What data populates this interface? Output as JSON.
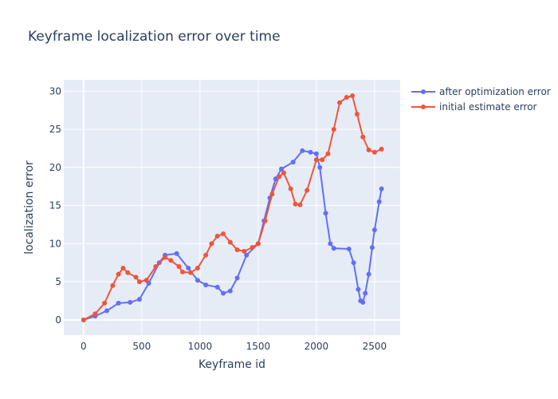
{
  "chart_data": {
    "type": "line",
    "title": "Keyframe localization error over time",
    "xlabel": "Keyframe id",
    "ylabel": "localization error",
    "xlim": [
      -170,
      2720
    ],
    "ylim": [
      -2,
      31.5
    ],
    "xticks": [
      0,
      500,
      1000,
      1500,
      2000,
      2500
    ],
    "yticks": [
      0,
      5,
      10,
      15,
      20,
      25,
      30
    ],
    "grid": true,
    "legend_position": "top-right",
    "plot_background": "#e5ecf6",
    "series": [
      {
        "name": "after optimization error",
        "color": "#636efa",
        "points": [
          [
            0,
            0
          ],
          [
            100,
            0.5
          ],
          [
            200,
            1.2
          ],
          [
            300,
            2.2
          ],
          [
            400,
            2.3
          ],
          [
            480,
            2.7
          ],
          [
            560,
            4.8
          ],
          [
            650,
            7.5
          ],
          [
            700,
            8.5
          ],
          [
            800,
            8.7
          ],
          [
            900,
            6.8
          ],
          [
            980,
            5.2
          ],
          [
            1050,
            4.6
          ],
          [
            1150,
            4.3
          ],
          [
            1200,
            3.5
          ],
          [
            1260,
            3.8
          ],
          [
            1320,
            5.5
          ],
          [
            1400,
            8.5
          ],
          [
            1500,
            10
          ],
          [
            1550,
            13
          ],
          [
            1600,
            16
          ],
          [
            1650,
            18.5
          ],
          [
            1700,
            19.8
          ],
          [
            1800,
            20.7
          ],
          [
            1880,
            22.2
          ],
          [
            1950,
            22
          ],
          [
            2000,
            21.8
          ],
          [
            2030,
            20
          ],
          [
            2080,
            14
          ],
          [
            2120,
            10
          ],
          [
            2150,
            9.4
          ],
          [
            2280,
            9.3
          ],
          [
            2320,
            7.5
          ],
          [
            2360,
            4
          ],
          [
            2380,
            2.5
          ],
          [
            2400,
            2.3
          ],
          [
            2420,
            3.5
          ],
          [
            2450,
            6
          ],
          [
            2480,
            9.5
          ],
          [
            2500,
            11.8
          ],
          [
            2540,
            15.5
          ],
          [
            2560,
            17.2
          ]
        ]
      },
      {
        "name": "initial estimate error",
        "color": "#ef553b",
        "points": [
          [
            0,
            0
          ],
          [
            100,
            0.8
          ],
          [
            180,
            2.2
          ],
          [
            250,
            4.5
          ],
          [
            300,
            6
          ],
          [
            340,
            6.8
          ],
          [
            380,
            6.2
          ],
          [
            450,
            5.6
          ],
          [
            480,
            5
          ],
          [
            540,
            5.2
          ],
          [
            620,
            7
          ],
          [
            700,
            8.2
          ],
          [
            750,
            7.8
          ],
          [
            820,
            7
          ],
          [
            850,
            6.3
          ],
          [
            920,
            6.2
          ],
          [
            980,
            6.8
          ],
          [
            1050,
            8.5
          ],
          [
            1100,
            10
          ],
          [
            1150,
            11
          ],
          [
            1200,
            11.3
          ],
          [
            1260,
            10.2
          ],
          [
            1320,
            9.2
          ],
          [
            1380,
            9
          ],
          [
            1450,
            9.5
          ],
          [
            1500,
            10
          ],
          [
            1560,
            13
          ],
          [
            1620,
            16.5
          ],
          [
            1680,
            18.8
          ],
          [
            1720,
            19.3
          ],
          [
            1780,
            17.2
          ],
          [
            1820,
            15.2
          ],
          [
            1860,
            15.1
          ],
          [
            1920,
            17
          ],
          [
            2000,
            21
          ],
          [
            2050,
            21
          ],
          [
            2100,
            21.8
          ],
          [
            2150,
            25
          ],
          [
            2200,
            28.5
          ],
          [
            2260,
            29.2
          ],
          [
            2310,
            29.4
          ],
          [
            2350,
            27
          ],
          [
            2400,
            24
          ],
          [
            2450,
            22.3
          ],
          [
            2500,
            22
          ],
          [
            2560,
            22.4
          ]
        ]
      }
    ]
  }
}
